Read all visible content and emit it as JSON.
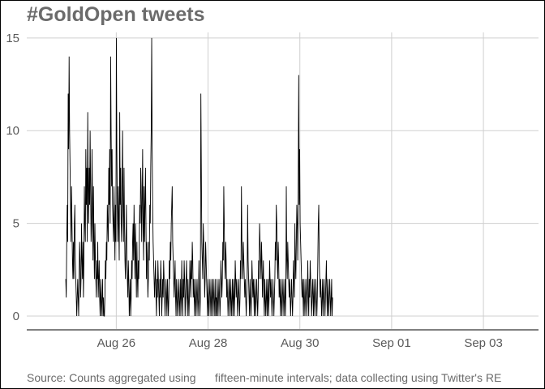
{
  "title": "#GoldOpen tweets",
  "caption": "Source: Counts aggregated using      fifteen-minute intervals; data collecting using Twitter's RE",
  "chart_data": {
    "type": "line",
    "title": "#GoldOpen tweets",
    "xlabel": "",
    "ylabel": "",
    "x_ticks": [
      "Aug 26",
      "Aug 28",
      "Aug 30",
      "Sep 01",
      "Sep 03"
    ],
    "x_tick_days": [
      1.0,
      3.0,
      5.0,
      7.0,
      9.0
    ],
    "y_ticks": [
      0,
      5,
      10,
      15
    ],
    "xlim_days": [
      -0.95,
      10.2
    ],
    "ylim": [
      -0.7,
      15.3
    ],
    "grid": true,
    "legend": "none",
    "series": [
      {
        "x_start_day": -0.1,
        "step_days": 0.0104,
        "values": [
          2,
          1,
          4,
          6,
          4,
          12,
          9,
          14,
          10,
          8,
          6,
          4,
          7,
          5,
          3,
          2,
          4,
          2,
          5,
          6,
          3,
          2,
          1,
          0,
          1,
          2,
          1,
          0,
          2,
          4,
          3,
          1,
          2,
          5,
          3,
          2,
          4,
          1,
          3,
          7,
          5,
          4,
          9,
          6,
          8,
          4,
          11,
          7,
          5,
          8,
          6,
          10,
          7,
          4,
          5,
          9,
          6,
          3,
          7,
          4,
          2,
          5,
          3,
          2,
          1,
          3,
          2,
          4,
          1,
          2,
          3,
          1,
          0,
          2,
          1,
          0,
          1,
          2,
          0,
          1,
          0,
          0,
          1,
          3,
          2,
          4,
          3,
          6,
          5,
          4,
          8,
          6,
          9,
          5,
          14,
          10,
          7,
          9,
          6,
          5,
          4,
          7,
          5,
          3,
          6,
          4,
          15,
          9,
          6,
          4,
          7,
          5,
          3,
          11,
          6,
          8,
          5,
          4,
          7,
          10,
          6,
          4,
          8,
          5,
          3,
          2,
          4,
          6,
          3,
          2,
          1,
          3,
          2,
          0,
          1,
          2,
          0,
          1,
          3,
          2,
          4,
          5,
          3,
          6,
          4,
          2,
          5,
          3,
          1,
          4,
          2,
          1,
          3,
          2,
          4,
          6,
          5,
          8,
          7,
          4,
          6,
          9,
          5,
          3,
          7,
          4,
          6,
          8,
          5,
          2,
          4,
          3,
          1,
          2,
          4,
          3,
          6,
          5,
          8,
          10,
          15,
          9,
          6,
          4,
          3,
          2,
          1,
          2,
          3,
          1,
          0,
          2,
          1,
          3,
          2,
          1,
          0,
          2,
          1,
          3,
          2,
          0,
          1,
          2,
          1,
          3,
          2,
          1,
          0,
          1,
          2,
          1,
          0,
          2,
          1,
          0,
          1,
          3,
          2,
          4,
          3,
          5,
          6,
          7,
          4,
          3,
          2,
          1,
          2,
          3,
          1,
          0,
          2,
          1,
          0,
          1,
          2,
          1,
          0,
          1,
          2,
          0,
          1,
          3,
          1,
          0,
          2,
          1,
          3,
          2,
          0,
          1,
          2,
          3,
          1,
          0,
          2,
          1,
          0,
          1,
          3,
          2,
          1,
          3,
          2,
          4,
          3,
          1,
          2,
          1,
          0,
          2,
          1,
          0,
          1,
          2,
          1,
          0,
          1,
          3,
          1,
          0,
          1,
          12,
          8,
          4,
          3,
          2,
          5,
          4,
          3,
          1,
          2,
          4,
          3,
          2,
          1,
          0,
          2,
          1,
          0,
          1,
          2,
          1,
          0,
          1,
          2,
          0,
          1,
          2,
          1,
          0,
          1,
          2,
          0,
          1,
          0,
          2,
          1,
          0,
          1,
          2,
          1,
          0,
          1,
          3,
          2,
          1,
          2,
          4,
          3,
          7,
          5,
          3,
          2,
          4,
          3,
          1,
          2,
          1,
          0,
          1,
          2,
          1,
          0,
          2,
          1,
          0,
          1,
          2,
          0,
          1,
          2,
          0,
          1,
          3,
          2,
          1,
          2,
          1,
          0,
          1,
          2,
          1,
          0,
          1,
          3,
          2,
          7,
          4,
          3,
          2,
          4,
          3,
          2,
          1,
          2,
          1,
          0,
          1,
          2,
          6,
          3,
          2,
          1,
          0,
          2,
          1,
          0,
          1,
          3,
          2,
          1,
          2,
          1,
          0,
          2,
          1,
          0,
          1,
          2,
          1,
          0,
          1,
          3,
          2,
          5,
          4,
          3,
          2,
          4,
          3,
          1,
          2,
          3,
          1,
          0,
          2,
          1,
          0,
          1,
          2,
          0,
          1,
          2,
          0,
          1,
          3,
          2,
          1,
          2,
          1,
          0,
          1,
          2,
          1,
          0,
          1,
          2,
          4,
          3,
          6,
          5,
          3,
          2,
          4,
          3,
          1,
          2,
          1,
          0,
          2,
          1,
          0,
          1,
          2,
          1,
          0,
          1,
          2,
          0,
          1,
          7,
          3,
          2,
          4,
          3,
          2,
          1,
          2,
          1,
          0,
          1,
          2,
          1,
          0,
          1,
          3,
          2,
          1,
          5,
          3,
          2,
          4,
          6,
          5,
          3,
          7,
          13,
          6,
          9,
          5,
          4,
          3,
          2,
          1,
          2,
          1,
          0,
          2,
          1,
          0,
          1,
          2,
          1,
          0,
          1,
          3,
          1,
          0,
          2,
          1,
          3,
          2,
          1,
          0,
          1,
          2,
          1,
          0,
          2,
          1,
          0,
          1,
          2,
          1,
          0,
          1,
          3,
          5,
          6,
          3,
          2,
          1,
          2,
          1,
          0,
          1,
          2,
          0,
          1,
          2,
          1,
          0,
          1,
          2,
          3,
          1,
          0,
          2,
          1,
          0,
          1,
          2,
          1,
          0,
          1,
          2,
          0,
          1
        ]
      }
    ]
  }
}
